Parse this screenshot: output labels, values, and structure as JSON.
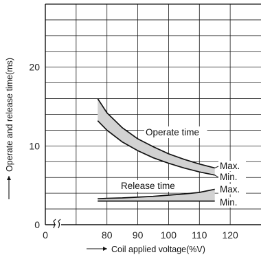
{
  "chart_data": {
    "type": "line",
    "title": "",
    "xlabel": "Coil applied voltage(%V)",
    "ylabel": "Operate and release time(ms)",
    "xlim": [
      60,
      130
    ],
    "ylim": [
      0,
      28
    ],
    "x_ticks": [
      "80",
      "90",
      "100",
      "110",
      "120"
    ],
    "y_ticks": [
      "0",
      "10",
      "20"
    ],
    "origin_x_label": "0",
    "axis_break": "x-axis break between 0 and 80",
    "grid": true,
    "shading": "gray band between Max. and Min. curves",
    "series": [
      {
        "x": [
          77,
          80,
          85,
          90,
          95,
          100,
          105,
          110,
          115
        ],
        "y": [
          16.0,
          14.2,
          12.3,
          10.9,
          9.9,
          9.0,
          8.3,
          7.7,
          7.2
        ]
      },
      {
        "x": [
          77,
          80,
          85,
          90,
          95,
          100,
          105,
          110,
          115
        ],
        "y": [
          13.2,
          12.0,
          10.5,
          9.4,
          8.5,
          7.8,
          7.2,
          6.7,
          6.3
        ]
      },
      {
        "x": [
          77,
          80,
          85,
          90,
          95,
          100,
          105,
          110,
          115
        ],
        "y": [
          3.3,
          3.35,
          3.4,
          3.5,
          3.6,
          3.75,
          3.9,
          4.1,
          4.5
        ]
      },
      {
        "x": [
          77,
          115
        ],
        "y": [
          3.0,
          3.0
        ]
      }
    ],
    "annotations": [
      {
        "text": "Operate time"
      },
      {
        "text": "Release time"
      },
      {
        "text": "Max."
      },
      {
        "text": "Min."
      },
      {
        "text": "Max."
      },
      {
        "text": "Min."
      }
    ]
  }
}
